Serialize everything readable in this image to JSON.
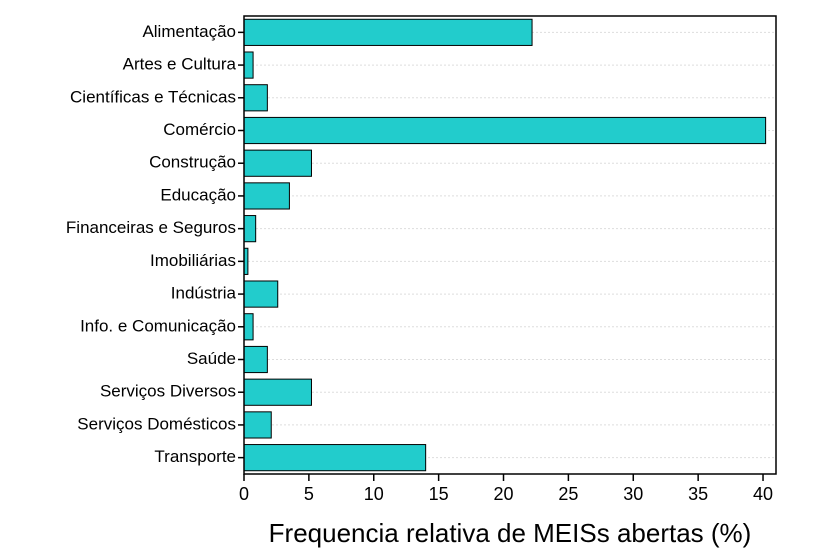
{
  "chart_data": {
    "type": "bar",
    "orientation": "horizontal",
    "x_label": "Frequencia relativa de MEISs abertas (%)",
    "categories": [
      "Alimentação",
      "Artes e Cultura",
      "Científicas e Técnicas",
      "Comércio",
      "Construção",
      "Educação",
      "Financeiras e Seguros",
      "Imobiliárias",
      "Indústria",
      "Info. e Comunicação",
      "Saúde",
      "Serviços Diversos",
      "Serviços Domésticos",
      "Transporte"
    ],
    "values": [
      22.2,
      0.7,
      1.8,
      40.2,
      5.2,
      3.5,
      0.9,
      0.3,
      2.6,
      0.7,
      1.8,
      5.2,
      2.1,
      14.0
    ],
    "color": "#22cccc",
    "xlim": [
      0,
      41
    ],
    "xticks": [
      0,
      5,
      10,
      15,
      20,
      25,
      30,
      35,
      40
    ],
    "grid": true
  }
}
